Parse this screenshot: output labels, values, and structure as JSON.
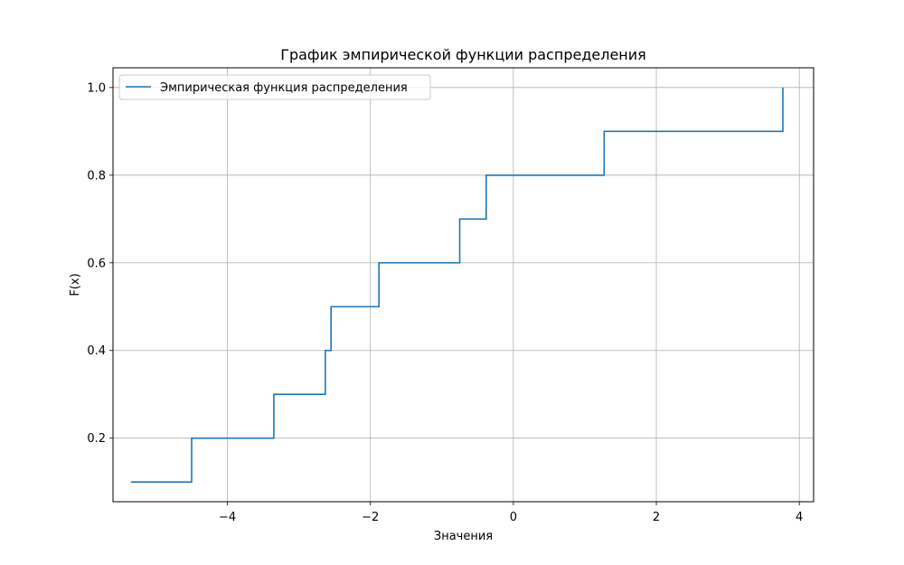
{
  "chart_data": {
    "type": "line",
    "drawstyle": "steps-post",
    "title": "График эмпирической функции распределения",
    "xlabel": "Значения",
    "ylabel": "F(x)",
    "xlim": [
      -5.6,
      4.2
    ],
    "ylim": [
      0.055,
      1.045
    ],
    "xticks": [
      -4,
      -2,
      0,
      2,
      4
    ],
    "xtick_labels": [
      "−4",
      "−2",
      "0",
      "2",
      "4"
    ],
    "yticks": [
      0.2,
      0.4,
      0.6,
      0.8,
      1.0
    ],
    "ytick_labels": [
      "0.2",
      "0.4",
      "0.6",
      "0.8",
      "1.0"
    ],
    "grid": true,
    "legend_position": "upper-left",
    "series": [
      {
        "name": "Эмпирическая функция распределения",
        "color": "#1f77b4",
        "x": [
          -5.35,
          -4.5,
          -3.35,
          -2.63,
          -2.55,
          -1.88,
          -0.75,
          -0.38,
          1.27,
          3.77
        ],
        "y": [
          0.1,
          0.2,
          0.3,
          0.4,
          0.5,
          0.6,
          0.7,
          0.8,
          0.9,
          1.0
        ]
      }
    ]
  },
  "colors": {
    "grid": "#b0b0b0",
    "axes": "#000000",
    "background": "#ffffff"
  }
}
